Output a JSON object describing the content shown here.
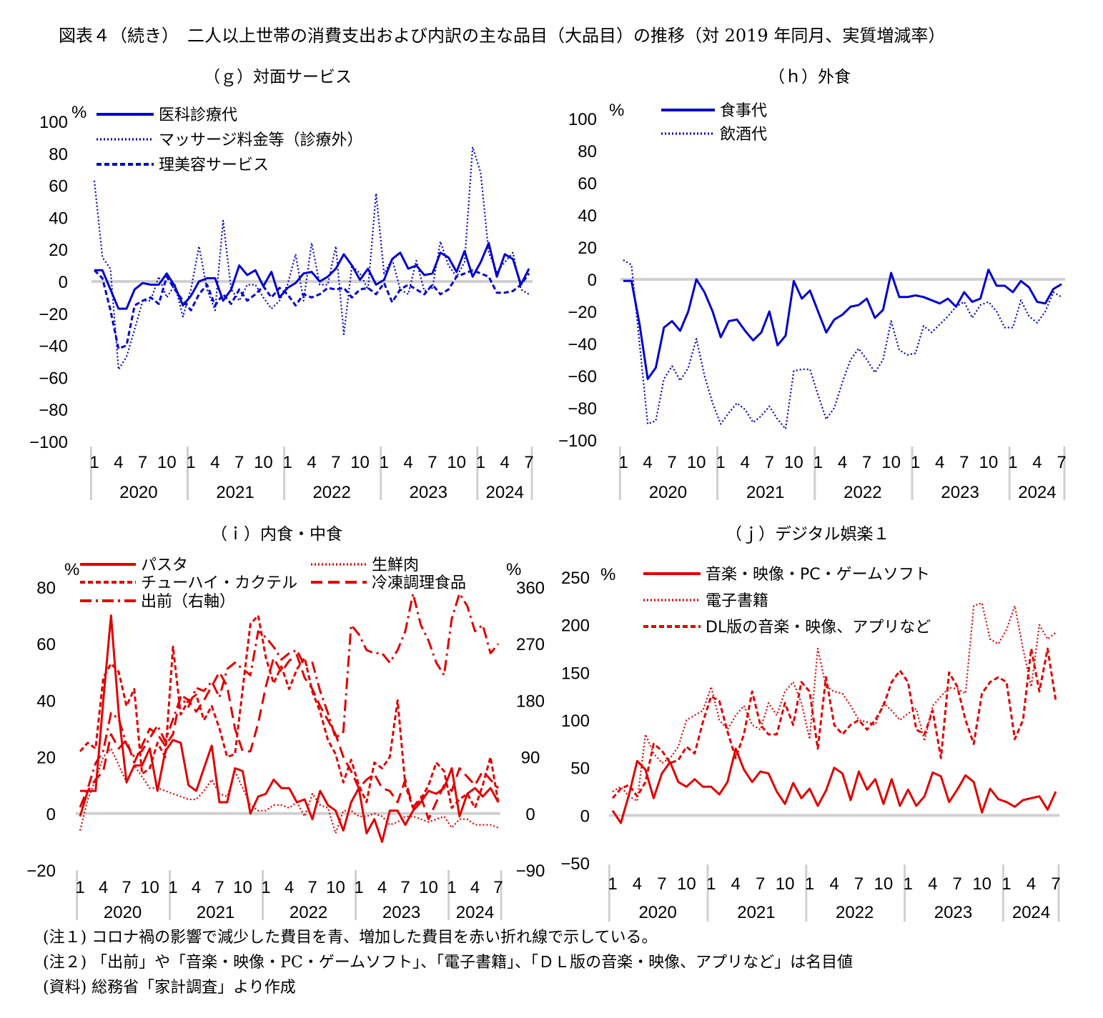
{
  "title": "図表４（続き）　二人以上世帯の消費支出および内訳の主な品目（大品目）の推移（対 2019 年同月、実質増減率）",
  "notes": [
    "(注１)  コロナ禍の影響で減少した費目を青、増加した費目を赤い折れ線で示している。",
    "(注２)  「出前」や「音楽・映像・PC・ゲームソフト」、「電子書籍」、「ＤＬ版の音楽・映像、アプリなど」は名目値",
    "(資料)  総務省「家計調査」より作成"
  ],
  "colors": {
    "blue": "#0000cc",
    "red": "#e00000",
    "zero_line": "#d0d0d0",
    "axis": "#d0d0d0"
  },
  "chart_data": [
    {
      "id": "g",
      "type": "line",
      "title": "（ｇ）対面サービス",
      "ylabel": "%",
      "ylim": [
        -100,
        100
      ],
      "yticks": [
        100,
        80,
        60,
        40,
        20,
        0,
        -20,
        -40,
        -60,
        -80,
        -100
      ],
      "x_month_ticks": [
        "1",
        "4",
        "7",
        "10",
        "1",
        "4",
        "7",
        "10",
        "1",
        "4",
        "7",
        "10",
        "1",
        "4",
        "7",
        "10",
        "1",
        "4",
        "7"
      ],
      "x_year_labels": [
        "2020",
        "2021",
        "2022",
        "2023",
        "2024"
      ],
      "x_start": "2020-01",
      "x_end": "2024-07",
      "series": [
        {
          "name": "医科診療代",
          "style": "solid",
          "color": "#0000cc",
          "values": [
            7,
            7,
            -5,
            -17,
            -17,
            -5,
            -1,
            -2,
            -2,
            5,
            -3,
            -15,
            -9,
            0,
            2,
            2,
            -12,
            -5,
            10,
            4,
            7,
            -3,
            6,
            -10,
            -4,
            -1,
            5,
            6,
            0,
            3,
            8,
            17,
            10,
            1,
            8,
            -2,
            1,
            14,
            18,
            8,
            10,
            4,
            5,
            18,
            15,
            6,
            19,
            3,
            12,
            24,
            3,
            17,
            14,
            -2,
            8
          ]
        },
        {
          "name": "マッサージ料金等（診療外）",
          "style": "dotted",
          "color": "#0000cc",
          "values": [
            63,
            15,
            8,
            -55,
            -47,
            -30,
            -12,
            -12,
            3,
            -10,
            -2,
            -22,
            -5,
            22,
            -5,
            -18,
            38,
            -5,
            -12,
            -2,
            -2,
            -10,
            -17,
            -12,
            -2,
            17,
            -12,
            24,
            -2,
            -2,
            22,
            -33,
            10,
            5,
            -5,
            55,
            5,
            14,
            -5,
            -8,
            13,
            -6,
            -4,
            25,
            10,
            3,
            12,
            84,
            68,
            18,
            6,
            12,
            18,
            -5,
            -8
          ]
        },
        {
          "name": "理美容サービス",
          "style": "dashed",
          "color": "#0000cc",
          "values": [
            7,
            2,
            -18,
            -42,
            -40,
            -15,
            -12,
            -10,
            -14,
            3,
            -5,
            -12,
            -18,
            -8,
            -2,
            -15,
            -8,
            -14,
            -5,
            -12,
            -8,
            -3,
            -10,
            -4,
            -8,
            -15,
            -8,
            -10,
            -8,
            -4,
            -5,
            -4,
            -10,
            -5,
            -4,
            -8,
            -1,
            -13,
            -5,
            -2,
            -5,
            -8,
            -2,
            -8,
            -5,
            3,
            5,
            7,
            5,
            3,
            -7,
            -7,
            -6,
            -2,
            5
          ]
        }
      ]
    },
    {
      "id": "h",
      "type": "line",
      "title": "（ｈ）外食",
      "ylabel": "%",
      "ylim": [
        -100,
        100
      ],
      "yticks": [
        100,
        80,
        60,
        40,
        20,
        0,
        -20,
        -40,
        -60,
        -80,
        -100
      ],
      "x_month_ticks": [
        "1",
        "4",
        "7",
        "10",
        "1",
        "4",
        "7",
        "10",
        "1",
        "4",
        "7",
        "10",
        "1",
        "4",
        "7",
        "10",
        "1",
        "4",
        "7"
      ],
      "x_year_labels": [
        "2020",
        "2021",
        "2022",
        "2023",
        "2024"
      ],
      "x_start": "2020-01",
      "x_end": "2024-07",
      "series": [
        {
          "name": "食事代",
          "style": "solid",
          "color": "#0000cc",
          "values": [
            -1,
            -1,
            -28,
            -62,
            -55,
            -30,
            -26,
            -32,
            -20,
            0,
            -8,
            -20,
            -36,
            -26,
            -25,
            -32,
            -38,
            -33,
            -20,
            -41,
            -35,
            -1,
            -12,
            -7,
            -20,
            -33,
            -25,
            -22,
            -17,
            -16,
            -12,
            -24,
            -19,
            4,
            -11,
            -11,
            -10,
            -11,
            -13,
            -15,
            -12,
            -17,
            -8,
            -14,
            -12,
            6,
            -4,
            -4,
            -8,
            -1,
            -5,
            -14,
            -15,
            -6,
            -3
          ]
        },
        {
          "name": "飲酒代",
          "style": "dotted",
          "color": "#0000cc",
          "values": [
            12,
            9,
            -40,
            -90,
            -88,
            -62,
            -54,
            -63,
            -55,
            -37,
            -60,
            -77,
            -90,
            -83,
            -77,
            -81,
            -89,
            -85,
            -79,
            -87,
            -93,
            -57,
            -56,
            -56,
            -72,
            -87,
            -80,
            -64,
            -50,
            -43,
            -50,
            -58,
            -50,
            -26,
            -44,
            -47,
            -46,
            -29,
            -33,
            -28,
            -23,
            -17,
            -14,
            -24,
            -16,
            -14,
            -20,
            -30,
            -30,
            -13,
            -23,
            -27,
            -20,
            -8,
            -11
          ]
        }
      ]
    },
    {
      "id": "i",
      "type": "line",
      "title": "（ｉ）内食・中食",
      "ylabel": "%",
      "ylim": [
        -20,
        80
      ],
      "yticks": [
        80,
        60,
        40,
        20,
        0,
        -20
      ],
      "y2label": "%",
      "y2lim": [
        -90,
        360
      ],
      "y2ticks": [
        360,
        270,
        180,
        90,
        0,
        -90
      ],
      "x_month_ticks": [
        "1",
        "4",
        "7",
        "10",
        "1",
        "4",
        "7",
        "10",
        "1",
        "4",
        "7",
        "10",
        "1",
        "4",
        "7",
        "10",
        "1",
        "4",
        "7"
      ],
      "x_year_labels": [
        "2020",
        "2021",
        "2022",
        "2023",
        "2024"
      ],
      "x_start": "2020-01",
      "x_end": "2024-07",
      "series": [
        {
          "name": "パスタ",
          "style": "solid",
          "color": "#e00000",
          "axis": "left",
          "values": [
            -1,
            8,
            8,
            40,
            70,
            35,
            11,
            17,
            17,
            23,
            8,
            22,
            26,
            25,
            10,
            8,
            16,
            24,
            4,
            4,
            16,
            15,
            0,
            6,
            7,
            12,
            9,
            9,
            4,
            5,
            -2,
            8,
            3,
            1,
            -6,
            4,
            9,
            -7,
            -2,
            -10,
            1,
            1,
            -4,
            1,
            4,
            8,
            7,
            9,
            16,
            -1,
            7,
            9,
            6,
            9,
            4
          ]
        },
        {
          "name": "生鮮肉",
          "style": "dotted",
          "color": "#e00000",
          "axis": "left",
          "values": [
            -6,
            5,
            12,
            20,
            23,
            17,
            11,
            17,
            13,
            9,
            9,
            8,
            7,
            6,
            5,
            5,
            8,
            12,
            7,
            6,
            15,
            9,
            3,
            1,
            1,
            3,
            3,
            2,
            4,
            -1,
            7,
            3,
            2,
            -7,
            1,
            1,
            -1,
            -1,
            0,
            -1,
            -4,
            -3,
            -1,
            -1,
            -2,
            -3,
            -2,
            -1,
            -5,
            -2,
            -2,
            -4,
            -4,
            -4,
            -5
          ]
        },
        {
          "name": "チューハイ・カクテル",
          "style": "dashed",
          "color": "#e00000",
          "axis": "left",
          "values": [
            22,
            25,
            23,
            48,
            53,
            50,
            38,
            44,
            14,
            16,
            25,
            20,
            59,
            35,
            40,
            42,
            33,
            38,
            30,
            20,
            21,
            44,
            67,
            70,
            55,
            46,
            52,
            44,
            51,
            55,
            43,
            36,
            26,
            21,
            11,
            19,
            10,
            4,
            18,
            16,
            20,
            40,
            10,
            2,
            5,
            10,
            18,
            15,
            2,
            5,
            7,
            2,
            10,
            20,
            4
          ]
        },
        {
          "name": "冷凍調理食品",
          "style": "longdash",
          "color": "#e00000",
          "axis": "left",
          "values": [
            8,
            8,
            12,
            15,
            28,
            23,
            26,
            18,
            24,
            30,
            28,
            24,
            28,
            42,
            40,
            36,
            40,
            45,
            50,
            45,
            30,
            22,
            22,
            32,
            45,
            55,
            50,
            54,
            56,
            48,
            44,
            38,
            33,
            28,
            20,
            15,
            9,
            12,
            14,
            9,
            8,
            4,
            12,
            2,
            6,
            -2,
            4,
            10,
            8,
            16,
            13,
            10,
            15,
            12,
            9
          ]
        },
        {
          "name": "出前（右軸）",
          "style": "dashdot",
          "color": "#e00000",
          "axis": "right",
          "values": [
            10,
            40,
            80,
            100,
            160,
            150,
            110,
            90,
            100,
            120,
            140,
            115,
            150,
            185,
            170,
            200,
            195,
            210,
            185,
            230,
            240,
            230,
            220,
            290,
            280,
            265,
            245,
            255,
            260,
            235,
            240,
            195,
            160,
            120,
            130,
            300,
            285,
            260,
            255,
            255,
            240,
            260,
            290,
            350,
            300,
            275,
            240,
            220,
            310,
            350,
            330,
            290,
            300,
            255,
            270
          ]
        }
      ]
    },
    {
      "id": "j",
      "type": "line",
      "title": "（ｊ）デジタル娯楽１",
      "ylabel": "%",
      "ylim": [
        -50,
        250
      ],
      "yticks": [
        250,
        200,
        150,
        100,
        50,
        0,
        -50
      ],
      "x_month_ticks": [
        "1",
        "4",
        "7",
        "10",
        "1",
        "4",
        "7",
        "10",
        "1",
        "4",
        "7",
        "10",
        "1",
        "4",
        "7",
        "10",
        "1",
        "4",
        "7"
      ],
      "x_year_labels": [
        "2020",
        "2021",
        "2022",
        "2023",
        "2024"
      ],
      "x_start": "2020-01",
      "x_end": "2024-07",
      "series": [
        {
          "name": "音楽・映像・PC・ゲームソフト",
          "style": "solid",
          "color": "#e00000",
          "values": [
            5,
            -8,
            22,
            57,
            48,
            18,
            44,
            56,
            35,
            30,
            38,
            30,
            30,
            22,
            35,
            70,
            48,
            35,
            46,
            44,
            25,
            12,
            34,
            18,
            28,
            10,
            26,
            50,
            44,
            16,
            46,
            27,
            38,
            12,
            38,
            10,
            27,
            10,
            20,
            45,
            41,
            14,
            27,
            42,
            35,
            3,
            28,
            17,
            14,
            9,
            16,
            18,
            20,
            6,
            25
          ]
        },
        {
          "name": "電子書籍",
          "style": "dotted",
          "color": "#e00000",
          "axis": "left",
          "values": [
            25,
            30,
            20,
            15,
            85,
            65,
            55,
            60,
            72,
            100,
            105,
            110,
            135,
            100,
            90,
            105,
            115,
            95,
            90,
            118,
            105,
            130,
            140,
            118,
            80,
            175,
            135,
            130,
            128,
            115,
            100,
            98,
            95,
            118,
            110,
            100,
            107,
            112,
            78,
            115,
            125,
            134,
            133,
            128,
            220,
            223,
            185,
            180,
            195,
            220,
            175,
            135,
            200,
            185,
            192
          ]
        },
        {
          "name": "DL版の音楽・映像、アプリなど",
          "style": "dashed",
          "color": "#e00000",
          "axis": "left",
          "values": [
            18,
            28,
            32,
            20,
            35,
            75,
            68,
            55,
            58,
            72,
            65,
            98,
            125,
            120,
            88,
            60,
            85,
            130,
            95,
            85,
            85,
            118,
            95,
            140,
            130,
            70,
            145,
            95,
            85,
            95,
            100,
            90,
            100,
            115,
            140,
            152,
            140,
            90,
            85,
            110,
            60,
            150,
            135,
            100,
            75,
            128,
            140,
            145,
            140,
            80,
            100,
            175,
            130,
            175,
            120
          ]
        }
      ]
    }
  ]
}
